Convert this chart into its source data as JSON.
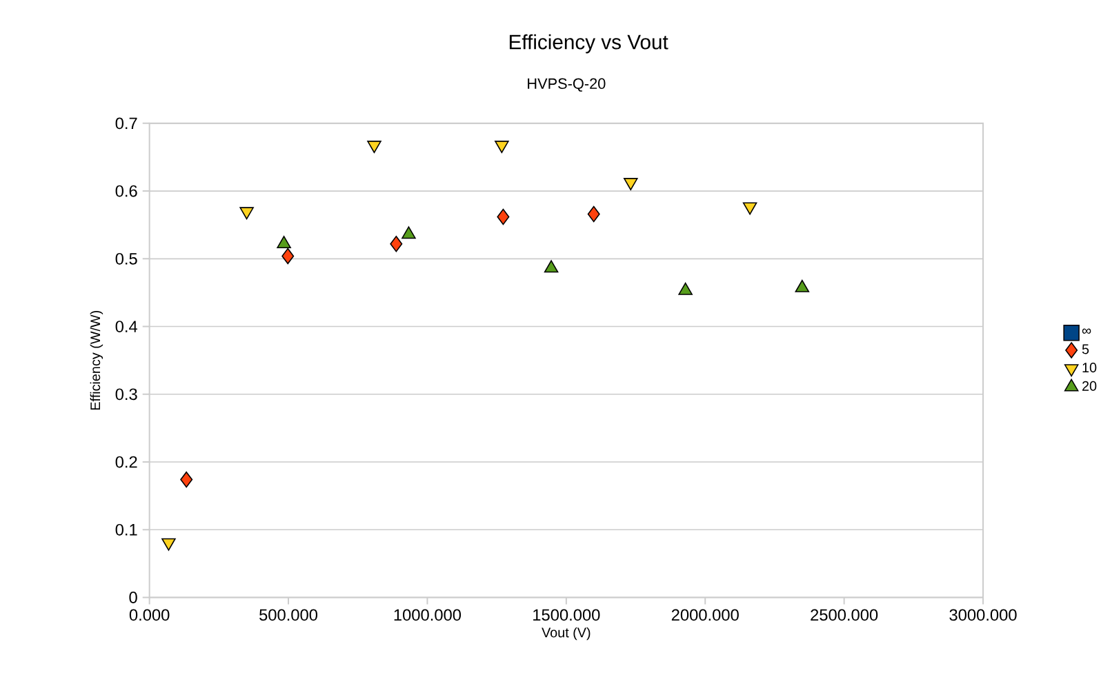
{
  "chart_data": {
    "type": "scatter",
    "title": "Efficiency vs Vout",
    "subtitle": "HVPS-Q-20",
    "xlabel": "Vout (V)",
    "ylabel": "Efficiency (W/W)",
    "xlim": [
      0,
      3000
    ],
    "ylim": [
      0,
      0.7
    ],
    "xticks": [
      {
        "value": 0,
        "label": "0.000"
      },
      {
        "value": 500,
        "label": "500.000"
      },
      {
        "value": 1000,
        "label": "1000.000"
      },
      {
        "value": 1500,
        "label": "1500.000"
      },
      {
        "value": 2000,
        "label": "2000.000"
      },
      {
        "value": 2500,
        "label": "2500.000"
      },
      {
        "value": 3000,
        "label": "3000.000"
      }
    ],
    "yticks": [
      0,
      0.1,
      0.2,
      0.3,
      0.4,
      0.5,
      0.6,
      0.7
    ],
    "grid": "y",
    "legend": "right",
    "series": [
      {
        "name": "∞",
        "color": "#004586",
        "marker": "square"
      },
      {
        "name": "5",
        "color": "#ff420e",
        "marker": "diamond",
        "x": [
          133,
          498,
          888,
          1273,
          1599
        ],
        "values": [
          0.174,
          0.504,
          0.522,
          0.562,
          0.566
        ]
      },
      {
        "name": "10",
        "color": "#ffd320",
        "marker": "triangle down",
        "x": [
          69,
          350,
          809,
          1268,
          1732,
          2161
        ],
        "values": [
          0.081,
          0.57,
          0.668,
          0.668,
          0.613,
          0.577
        ]
      },
      {
        "name": "20",
        "color": "#579d1c",
        "marker": "triangle",
        "x": [
          484,
          933,
          1446,
          1929,
          2349
        ],
        "values": [
          0.522,
          0.536,
          0.486,
          0.453,
          0.457
        ]
      }
    ]
  }
}
